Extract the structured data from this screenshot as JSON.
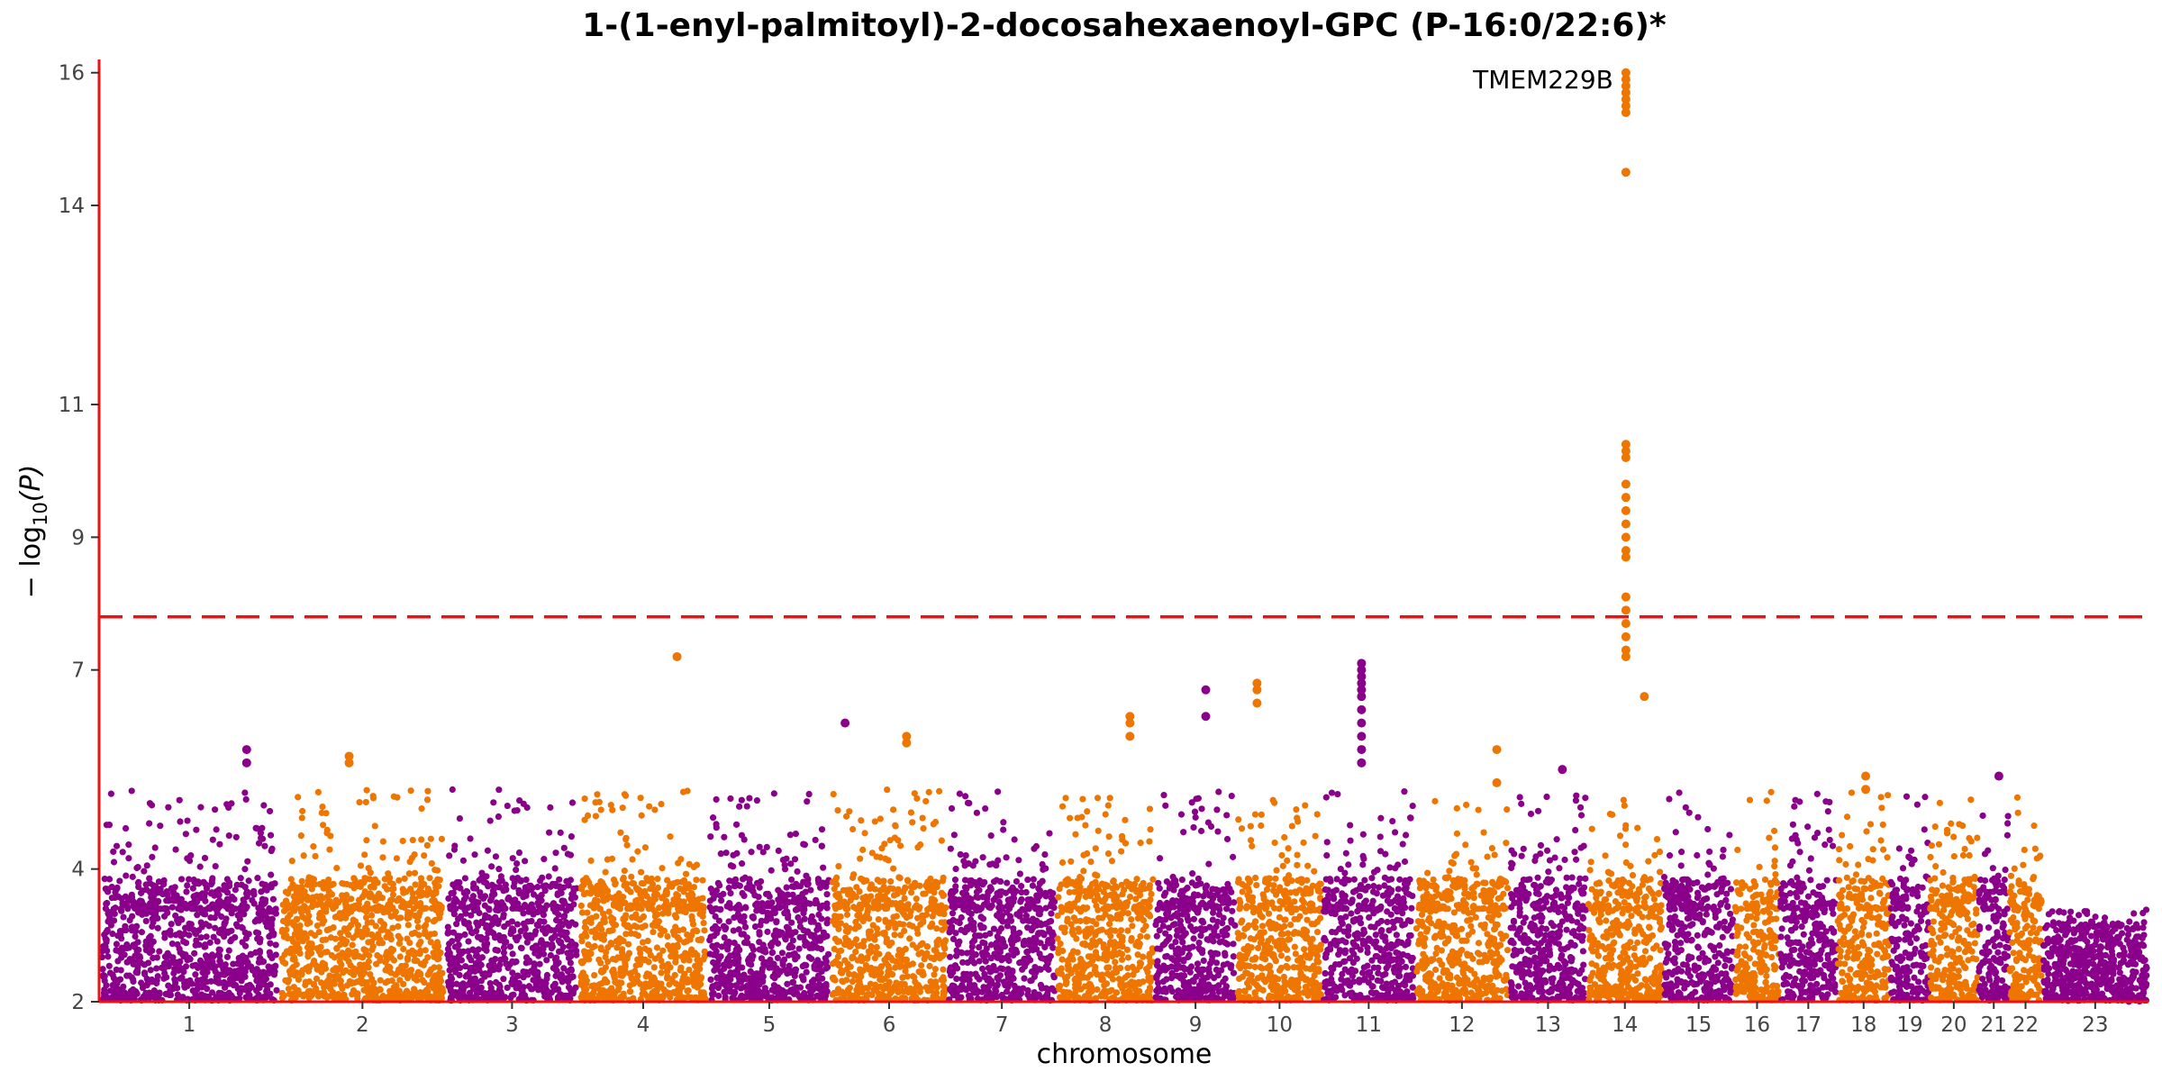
{
  "chart_data": {
    "type": "scatter",
    "title": "1-(1-enyl-palmitoyl)-2-docosahexaenoyl-GPC (P-16:0/22:6)*",
    "xlabel": "chromosome",
    "ylabel_prefix": "− log",
    "ylabel_sub": "10",
    "ylabel_var": "(P)",
    "ylim": [
      2,
      16.2
    ],
    "yticks": [
      2,
      4,
      7,
      9,
      11,
      14,
      16
    ],
    "grid": false,
    "legend": "none",
    "significance_threshold": 7.8,
    "colors": {
      "odd": "#8b008b",
      "even": "#ee7600",
      "threshold": "#ee1111",
      "axis": "#ee1111"
    },
    "chromosomes": [
      {
        "label": "1",
        "x0": 0.0,
        "x1": 0.088
      },
      {
        "label": "2",
        "x0": 0.088,
        "x1": 0.169
      },
      {
        "label": "3",
        "x0": 0.169,
        "x1": 0.234
      },
      {
        "label": "4",
        "x0": 0.234,
        "x1": 0.297
      },
      {
        "label": "5",
        "x0": 0.297,
        "x1": 0.357
      },
      {
        "label": "6",
        "x0": 0.357,
        "x1": 0.414
      },
      {
        "label": "7",
        "x0": 0.414,
        "x1": 0.467
      },
      {
        "label": "8",
        "x0": 0.467,
        "x1": 0.515
      },
      {
        "label": "9",
        "x0": 0.515,
        "x1": 0.555
      },
      {
        "label": "10",
        "x0": 0.555,
        "x1": 0.597
      },
      {
        "label": "11",
        "x0": 0.597,
        "x1": 0.642
      },
      {
        "label": "12",
        "x0": 0.642,
        "x1": 0.688
      },
      {
        "label": "13",
        "x0": 0.688,
        "x1": 0.726
      },
      {
        "label": "14",
        "x0": 0.726,
        "x1": 0.763
      },
      {
        "label": "15",
        "x0": 0.763,
        "x1": 0.798
      },
      {
        "label": "16",
        "x0": 0.798,
        "x1": 0.82
      },
      {
        "label": "17",
        "x0": 0.82,
        "x1": 0.848
      },
      {
        "label": "18",
        "x0": 0.848,
        "x1": 0.874
      },
      {
        "label": "19",
        "x0": 0.874,
        "x1": 0.893
      },
      {
        "label": "20",
        "x0": 0.893,
        "x1": 0.917
      },
      {
        "label": "21",
        "x0": 0.917,
        "x1": 0.932
      },
      {
        "label": "22",
        "x0": 0.932,
        "x1": 0.948
      },
      {
        "label": "23",
        "x0": 0.948,
        "x1": 1.0
      }
    ],
    "notable_points": [
      {
        "chrom": "14",
        "x": 0.745,
        "y": [
          16.0,
          15.9,
          15.8,
          15.7,
          15.6,
          15.5,
          15.4,
          14.5,
          10.4,
          10.3,
          10.2,
          9.8,
          9.6,
          9.4,
          9.2,
          9.0,
          8.8,
          8.7,
          8.1,
          7.9,
          7.7,
          7.5,
          7.3,
          7.2
        ]
      },
      {
        "chrom": "14",
        "x": 0.754,
        "y": [
          6.6
        ]
      },
      {
        "chrom": "11",
        "x": 0.616,
        "y": [
          7.1,
          7.0,
          6.9,
          6.8,
          6.7,
          6.6,
          6.4,
          6.2,
          6.0,
          5.8,
          5.6
        ]
      },
      {
        "chrom": "4",
        "x": 0.282,
        "y": [
          7.2
        ]
      },
      {
        "chrom": "10",
        "x": 0.565,
        "y": [
          6.8,
          6.7,
          6.5
        ]
      },
      {
        "chrom": "9",
        "x": 0.54,
        "y": [
          6.7,
          6.3
        ]
      },
      {
        "chrom": "8",
        "x": 0.503,
        "y": [
          6.3,
          6.2,
          6.0
        ]
      },
      {
        "chrom": "6",
        "x": 0.394,
        "y": [
          6.0,
          5.9
        ]
      },
      {
        "chrom": "5",
        "x": 0.364,
        "y": [
          6.2
        ]
      },
      {
        "chrom": "1",
        "x": 0.072,
        "y": [
          5.8,
          5.6
        ]
      },
      {
        "chrom": "2",
        "x": 0.122,
        "y": [
          5.7,
          5.6
        ]
      },
      {
        "chrom": "12",
        "x": 0.682,
        "y": [
          5.8,
          5.3
        ]
      },
      {
        "chrom": "13",
        "x": 0.714,
        "y": [
          5.5
        ]
      },
      {
        "chrom": "21",
        "x": 0.927,
        "y": [
          5.4
        ]
      },
      {
        "chrom": "18",
        "x": 0.862,
        "y": [
          5.4,
          5.2
        ]
      }
    ],
    "annotations": [
      {
        "text": "TMEM229B",
        "x": 0.745,
        "y": 15.9
      }
    ]
  }
}
